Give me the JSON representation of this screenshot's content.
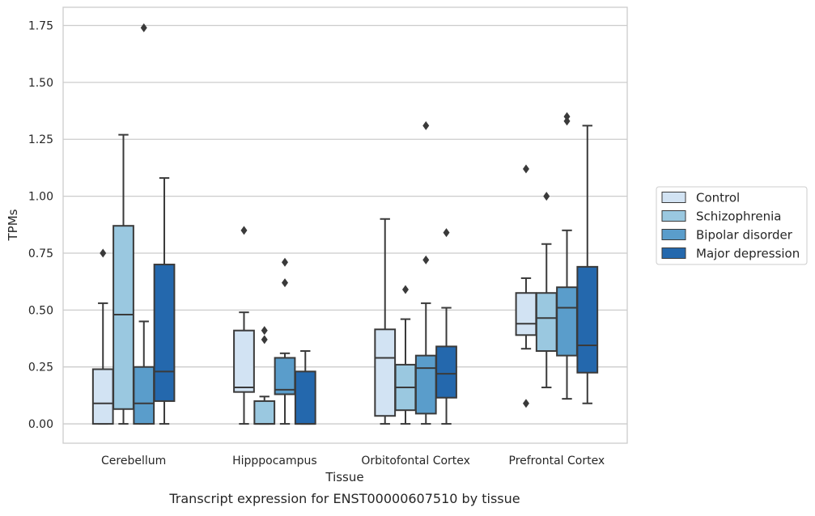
{
  "caption": "Transcript expression for ENST00000607510 by tissue",
  "chart_data": {
    "type": "box",
    "xlabel": "Tissue",
    "ylabel": "TPMs",
    "ylim": [
      -0.085,
      1.83
    ],
    "yticks": [
      "0.00",
      "0.25",
      "0.50",
      "0.75",
      "1.00",
      "1.25",
      "1.50",
      "1.75"
    ],
    "ytick_values": [
      0,
      0.25,
      0.5,
      0.75,
      1.0,
      1.25,
      1.5,
      1.75
    ],
    "grid": "horizontal",
    "legend_position": "right",
    "categories": [
      "Cerebellum",
      "Hipppocampus",
      "Orbitofontal Cortex",
      "Prefrontal Cortex"
    ],
    "series": [
      {
        "name": "Control",
        "color": "#d2e3f3",
        "boxes": [
          {
            "whisker_low": 0.0,
            "q1": 0.0,
            "median": 0.09,
            "q3": 0.24,
            "whisker_high": 0.53,
            "outliers": [
              0.75
            ]
          },
          {
            "whisker_low": 0.0,
            "q1": 0.14,
            "median": 0.16,
            "q3": 0.41,
            "whisker_high": 0.49,
            "outliers": [
              0.85
            ]
          },
          {
            "whisker_low": 0.0,
            "q1": 0.035,
            "median": 0.29,
            "q3": 0.415,
            "whisker_high": 0.9,
            "outliers": []
          },
          {
            "whisker_low": 0.33,
            "q1": 0.39,
            "median": 0.44,
            "q3": 0.575,
            "whisker_high": 0.64,
            "outliers": [
              0.09,
              1.12
            ]
          }
        ]
      },
      {
        "name": "Schizophrenia",
        "color": "#9ac8e0",
        "boxes": [
          {
            "whisker_low": 0.0,
            "q1": 0.065,
            "median": 0.48,
            "q3": 0.87,
            "whisker_high": 1.27,
            "outliers": []
          },
          {
            "whisker_low": 0.0,
            "q1": 0.0,
            "median": 0.0,
            "q3": 0.1,
            "whisker_high": 0.12,
            "outliers": [
              0.37,
              0.41
            ]
          },
          {
            "whisker_low": 0.0,
            "q1": 0.06,
            "median": 0.16,
            "q3": 0.26,
            "whisker_high": 0.46,
            "outliers": [
              0.59
            ]
          },
          {
            "whisker_low": 0.16,
            "q1": 0.32,
            "median": 0.465,
            "q3": 0.575,
            "whisker_high": 0.79,
            "outliers": [
              1.0
            ]
          }
        ]
      },
      {
        "name": "Bipolar disorder",
        "color": "#5a9dcb",
        "boxes": [
          {
            "whisker_low": 0.0,
            "q1": 0.0,
            "median": 0.09,
            "q3": 0.25,
            "whisker_high": 0.45,
            "outliers": [
              1.74
            ]
          },
          {
            "whisker_low": 0.0,
            "q1": 0.13,
            "median": 0.15,
            "q3": 0.29,
            "whisker_high": 0.31,
            "outliers": [
              0.62,
              0.71
            ]
          },
          {
            "whisker_low": 0.0,
            "q1": 0.045,
            "median": 0.245,
            "q3": 0.3,
            "whisker_high": 0.53,
            "outliers": [
              0.72,
              1.31
            ]
          },
          {
            "whisker_low": 0.11,
            "q1": 0.3,
            "median": 0.51,
            "q3": 0.6,
            "whisker_high": 0.85,
            "outliers": [
              1.33,
              1.35
            ]
          }
        ]
      },
      {
        "name": "Major depression",
        "color": "#2468ad",
        "boxes": [
          {
            "whisker_low": 0.0,
            "q1": 0.1,
            "median": 0.23,
            "q3": 0.7,
            "whisker_high": 1.08,
            "outliers": []
          },
          {
            "whisker_low": 0.0,
            "q1": 0.0,
            "median": 0.0,
            "q3": 0.23,
            "whisker_high": 0.32,
            "outliers": []
          },
          {
            "whisker_low": 0.0,
            "q1": 0.115,
            "median": 0.22,
            "q3": 0.34,
            "whisker_high": 0.51,
            "outliers": [
              0.84
            ]
          },
          {
            "whisker_low": 0.09,
            "q1": 0.225,
            "median": 0.345,
            "q3": 0.69,
            "whisker_high": 1.31,
            "outliers": []
          }
        ]
      }
    ]
  }
}
